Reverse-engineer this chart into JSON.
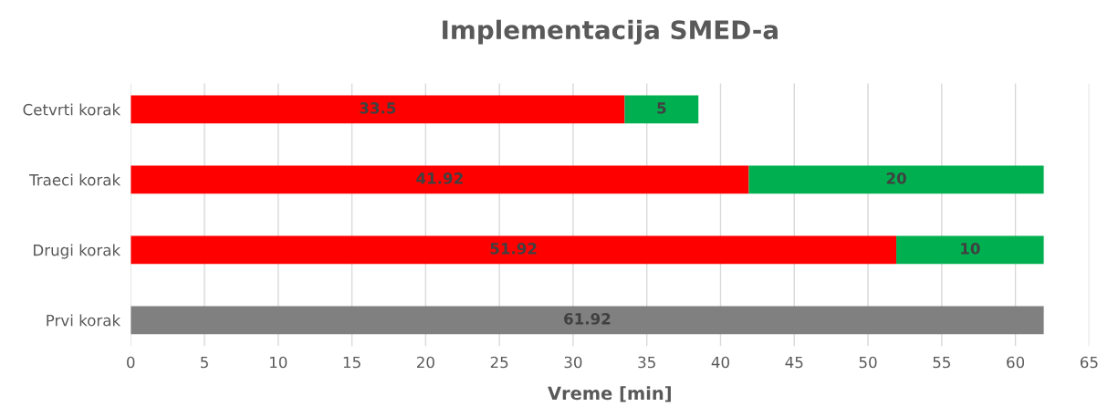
{
  "chart_data": {
    "type": "bar",
    "title": "Implementacija SMED-a",
    "xlabel": "Vreme [min]",
    "orientation": "horizontal",
    "stacked": true,
    "categories": [
      "Cetvrti korak",
      "Traeci korak",
      "Drugi korak",
      "Prvi korak"
    ],
    "series": [
      {
        "color": "#ff0000",
        "values": [
          33.5,
          41.92,
          51.92,
          null
        ]
      },
      {
        "color": "#00b050",
        "values": [
          5,
          20,
          10,
          null
        ]
      },
      {
        "color": "#808080",
        "values": [
          null,
          null,
          null,
          61.92
        ]
      }
    ],
    "xlim": [
      0,
      65
    ],
    "xticks": [
      0,
      5,
      10,
      15,
      20,
      25,
      30,
      35,
      40,
      45,
      50,
      55,
      60,
      65
    ],
    "grid": "x",
    "data_labels": true
  }
}
